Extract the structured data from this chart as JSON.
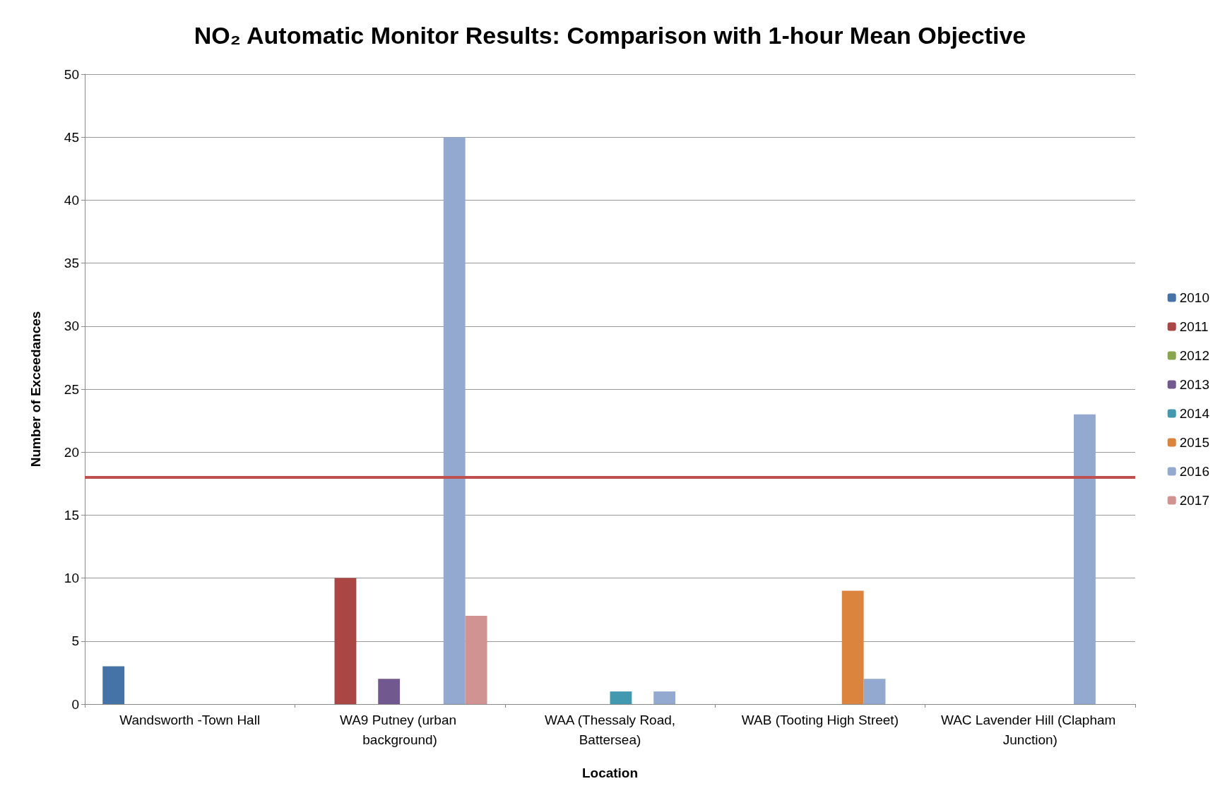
{
  "chart_data": {
    "type": "bar",
    "title": "NO₂ Automatic Monitor Results: Comparison with 1-hour Mean Objective",
    "xlabel": "Location",
    "ylabel": "Number of Exceedances",
    "categories": [
      "Wandsworth -Town Hall",
      "WA9 Putney (urban background)",
      "WAA (Thessaly Road,Battersea)",
      "WAB (Tooting High Street)",
      "WAC Lavender Hill (Clapham Junction)"
    ],
    "series": [
      {
        "name": "2010",
        "color": "#4572a7",
        "values": [
          3,
          null,
          null,
          null,
          null
        ]
      },
      {
        "name": "2011",
        "color": "#aa4643",
        "values": [
          null,
          10,
          null,
          null,
          null
        ]
      },
      {
        "name": "2012",
        "color": "#89a54e",
        "values": [
          null,
          null,
          null,
          null,
          null
        ]
      },
      {
        "name": "2013",
        "color": "#71588f",
        "values": [
          null,
          2,
          null,
          null,
          null
        ]
      },
      {
        "name": "2014",
        "color": "#4198af",
        "values": [
          null,
          null,
          1,
          null,
          null
        ]
      },
      {
        "name": "2015",
        "color": "#db843d",
        "values": [
          null,
          null,
          null,
          9,
          null
        ]
      },
      {
        "name": "2016",
        "color": "#93a9cf",
        "values": [
          null,
          45,
          1,
          2,
          23
        ]
      },
      {
        "name": "2017",
        "color": "#d19392",
        "values": [
          null,
          7,
          null,
          null,
          null
        ]
      }
    ],
    "ylim": [
      0,
      50
    ],
    "yticks": [
      0,
      5,
      10,
      15,
      20,
      25,
      30,
      35,
      40,
      45,
      50
    ],
    "ref_lines": [
      {
        "axis": "y",
        "value": 18,
        "color": "#c0504d"
      }
    ],
    "grid": "y",
    "legend": "right"
  }
}
